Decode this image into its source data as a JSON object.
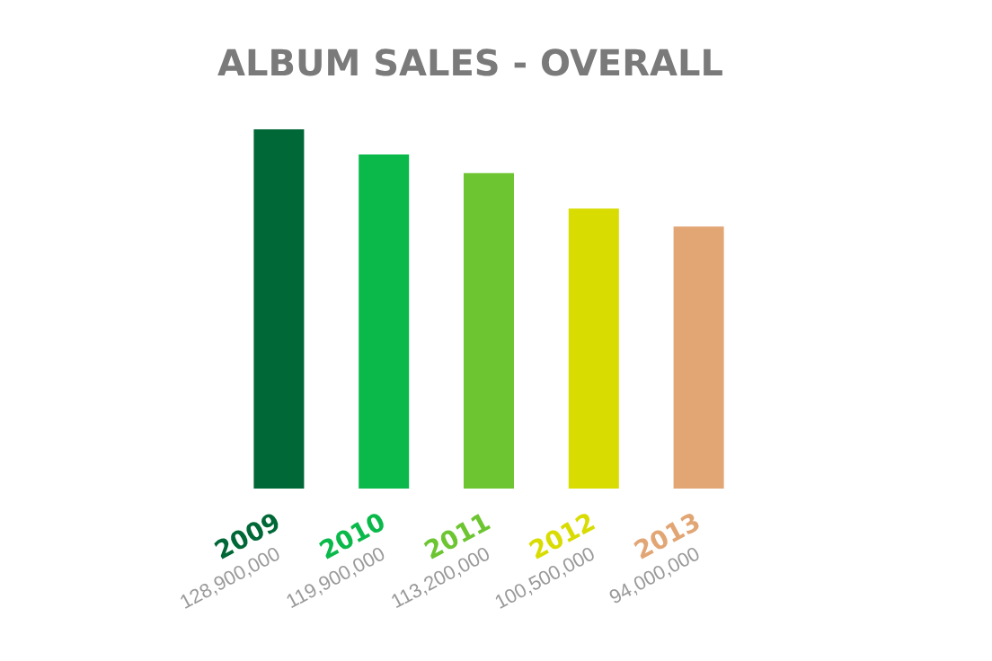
{
  "chart_data": {
    "type": "bar",
    "title": "ALBUM SALES - OVERALL",
    "categories": [
      "2009",
      "2010",
      "2011",
      "2012",
      "2013"
    ],
    "values": [
      128900000,
      119900000,
      113200000,
      100500000,
      94000000
    ],
    "value_labels": [
      "128,900,000",
      "119,900,000",
      "113,200,000",
      "100,500,000",
      "94,000,000"
    ],
    "colors": [
      "#006837",
      "#0ab94a",
      "#6cc531",
      "#d8dc00",
      "#e2a574"
    ]
  }
}
